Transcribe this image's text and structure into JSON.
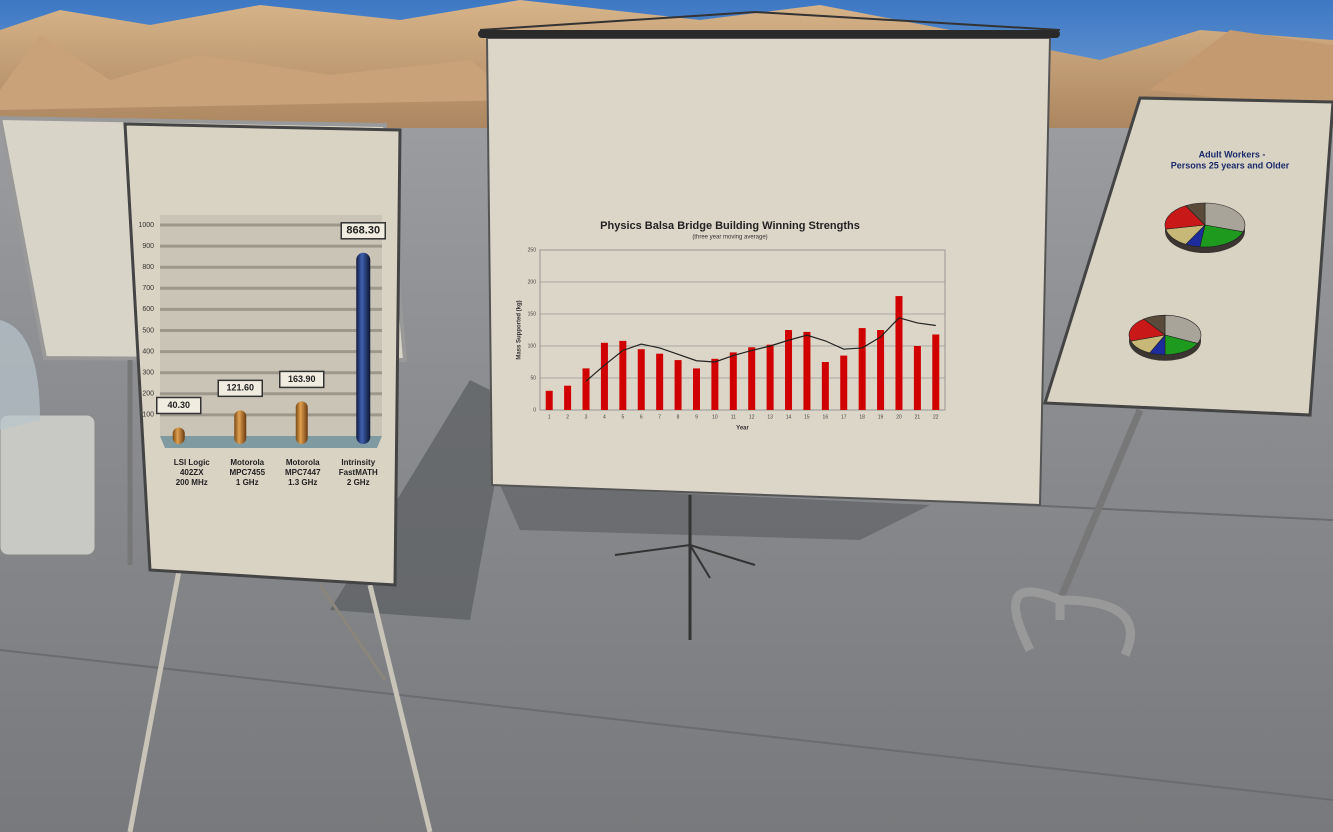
{
  "chart_data": [
    {
      "type": "bar",
      "categories": [
        [
          "LSI Logic",
          "402ZX",
          "200 MHz"
        ],
        [
          "Motorola",
          "MPC7455",
          "1 GHz"
        ],
        [
          "Motorola",
          "MPC7447",
          "1.3 GHz"
        ],
        [
          "Intrinsity",
          "FastMATH",
          "2 GHz"
        ]
      ],
      "values": [
        40.3,
        121.6,
        163.9,
        868.3
      ],
      "value_labels": [
        "40.30",
        "121.60",
        "163.90",
        "868.30"
      ],
      "colors": [
        "#c8872c",
        "#c8872c",
        "#c8872c",
        "#27408b"
      ],
      "ylim": [
        0,
        1000
      ],
      "yticks": [
        100,
        200,
        300,
        400,
        500,
        600,
        700,
        800,
        900,
        1000
      ],
      "grid": true
    },
    {
      "type": "bar",
      "title": "Physics Balsa Bridge Building Winning Strengths",
      "subtitle": "(three year moving average)",
      "y_label": "Mass Supported (kg)",
      "x_label": "Year",
      "categories": [
        "1",
        "2",
        "3",
        "4",
        "5",
        "6",
        "7",
        "8",
        "9",
        "10",
        "11",
        "12",
        "13",
        "14",
        "15",
        "16",
        "17",
        "18",
        "19",
        "20",
        "21",
        "22"
      ],
      "series": [
        {
          "type": "bar",
          "color": "#d00000",
          "values": [
            30,
            38,
            65,
            105,
            108,
            95,
            88,
            78,
            65,
            80,
            90,
            98,
            102,
            125,
            122,
            75,
            85,
            128,
            125,
            178,
            100,
            118
          ]
        },
        {
          "type": "line",
          "color": "#222222",
          "values": [
            null,
            null,
            45,
            70,
            93,
            103,
            97,
            87,
            77,
            75,
            85,
            93,
            100,
            109,
            117,
            108,
            95,
            97,
            114,
            144,
            136,
            132
          ]
        }
      ],
      "ylim": [
        0,
        250
      ],
      "yticks": [
        0,
        50,
        100,
        150,
        200,
        250
      ],
      "grid": true
    },
    {
      "type": "pie",
      "title": "Adult Workers -",
      "subtitle": "Persons 25 years and Older",
      "values": [
        30,
        22,
        6,
        14,
        20,
        8
      ],
      "colors": [
        "#a8a49a",
        "#1e9a1e",
        "#1c2c9c",
        "#c8b878",
        "#c81818",
        "#5a4a3a"
      ]
    },
    {
      "type": "pie",
      "values": [
        32,
        18,
        7,
        13,
        20,
        10
      ],
      "colors": [
        "#a8a49a",
        "#1e9a1e",
        "#1c2c9c",
        "#c8b878",
        "#c81818",
        "#5a4a3a"
      ]
    }
  ]
}
